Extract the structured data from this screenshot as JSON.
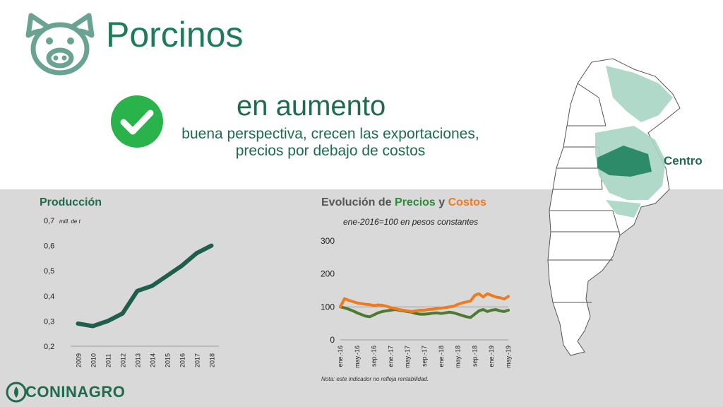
{
  "header": {
    "title": "Porcinos",
    "icon": "pig-icon"
  },
  "status": {
    "icon": "checkmark-icon",
    "main": "en aumento",
    "line1": "buena perspectiva, crecen las exportaciones,",
    "line2": "precios por debajo de costos"
  },
  "map": {
    "region_label": "Centro"
  },
  "production": {
    "title": "Producción"
  },
  "prices": {
    "title_prefix": "Evolución de ",
    "title_precios": "Precios",
    "title_mid": " y ",
    "title_costos": "Costos",
    "subtitle": "ene-2016=100 en pesos constantes",
    "note": "Nota: este indicador no refleja rentabilidad."
  },
  "logo": {
    "text": "CONINAGRO"
  },
  "colors": {
    "production_line": "#1f5e4a",
    "precios": "#4c7a2e",
    "costos": "#f07b1e",
    "brand": "#1f6b4e",
    "map_light": "#a8d5c4",
    "map_dark": "#2e8b6a"
  },
  "chart_data": [
    {
      "type": "line",
      "title": "Producción",
      "ylabel": "mill. de t",
      "x": [
        "2009",
        "2010",
        "2011",
        "2012",
        "2013",
        "2014",
        "2015",
        "2016",
        "2017",
        "2018"
      ],
      "values": [
        0.29,
        0.28,
        0.3,
        0.33,
        0.42,
        0.44,
        0.48,
        0.52,
        0.57,
        0.6
      ],
      "ylim": [
        0.2,
        0.7
      ],
      "yticks": [
        "0,2",
        "0,3",
        "0,4",
        "0,5",
        "0,6",
        "0,7"
      ],
      "grid": false
    },
    {
      "type": "line",
      "title": "Evolución de Precios y Costos",
      "subtitle": "ene-2016=100 en pesos constantes",
      "ylim": [
        0,
        300
      ],
      "yticks": [
        "0",
        "100",
        "200",
        "300"
      ],
      "xticks": [
        "ene.-16",
        "may.-16",
        "sep.-16",
        "ene.-17",
        "may.-17",
        "sep.-17",
        "ene.-18",
        "may.-18",
        "sep.-18",
        "ene.-19",
        "may.-19"
      ],
      "x": [
        "ene.-16",
        "feb.-16",
        "mar.-16",
        "abr.-16",
        "may.-16",
        "jun.-16",
        "jul.-16",
        "ago.-16",
        "sep.-16",
        "oct.-16",
        "nov.-16",
        "dic.-16",
        "ene.-17",
        "feb.-17",
        "mar.-17",
        "abr.-17",
        "may.-17",
        "jun.-17",
        "jul.-17",
        "ago.-17",
        "sep.-17",
        "oct.-17",
        "nov.-17",
        "dic.-17",
        "ene.-18",
        "feb.-18",
        "mar.-18",
        "abr.-18",
        "may.-18",
        "jun.-18",
        "jul.-18",
        "ago.-18",
        "sep.-18",
        "oct.-18",
        "nov.-18",
        "dic.-18",
        "ene.-19",
        "feb.-19",
        "mar.-19",
        "abr.-19",
        "may.-19"
      ],
      "series": [
        {
          "name": "Precios",
          "values": [
            100,
            97,
            93,
            88,
            82,
            77,
            72,
            70,
            76,
            82,
            86,
            88,
            90,
            92,
            90,
            88,
            86,
            84,
            80,
            78,
            78,
            79,
            81,
            82,
            80,
            82,
            84,
            82,
            78,
            74,
            70,
            68,
            78,
            88,
            92,
            86,
            90,
            92,
            88,
            86,
            90
          ]
        },
        {
          "name": "Costos",
          "values": [
            100,
            125,
            120,
            116,
            112,
            110,
            108,
            107,
            104,
            106,
            105,
            102,
            98,
            95,
            92,
            90,
            88,
            86,
            88,
            90,
            90,
            92,
            93,
            95,
            96,
            98,
            100,
            102,
            108,
            112,
            115,
            118,
            135,
            140,
            130,
            140,
            135,
            130,
            128,
            124,
            132
          ]
        }
      ],
      "grid": false
    }
  ]
}
